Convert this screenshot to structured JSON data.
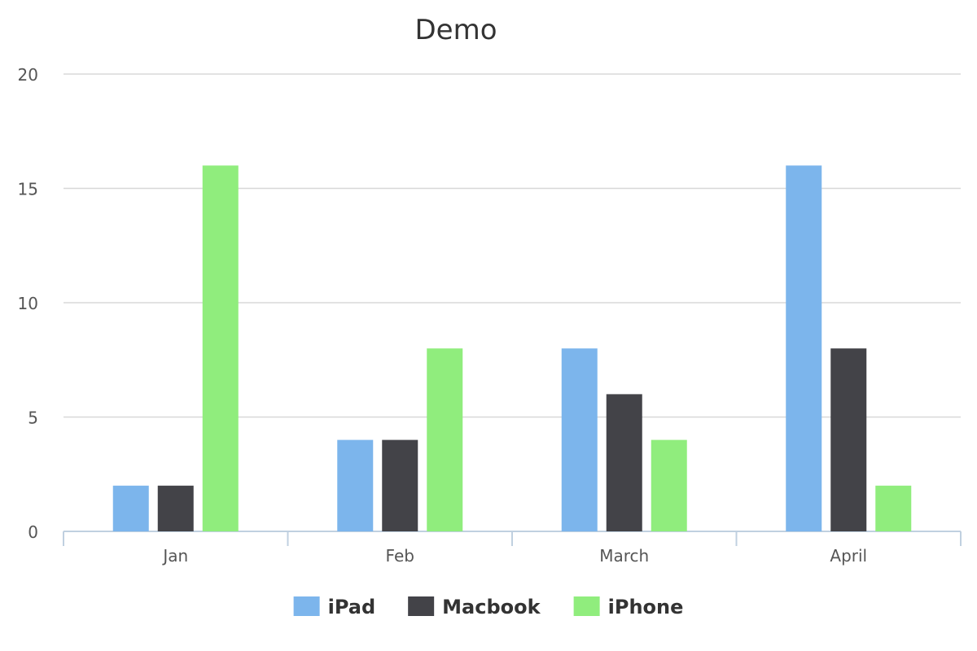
{
  "chart_data": {
    "type": "bar",
    "title": "Demo",
    "xlabel": "",
    "ylabel": "",
    "categories": [
      "Jan",
      "Feb",
      "March",
      "April"
    ],
    "series": [
      {
        "name": "iPad",
        "values": [
          2,
          4,
          8,
          16
        ],
        "color": "#7cb5ec"
      },
      {
        "name": "Macbook",
        "values": [
          2,
          4,
          6,
          8
        ],
        "color": "#434348"
      },
      {
        "name": "iPhone",
        "values": [
          16,
          8,
          4,
          2
        ],
        "color": "#90ed7d"
      }
    ],
    "ylim": [
      0,
      20
    ],
    "yticks": [
      0,
      5,
      10,
      15,
      20
    ],
    "grid": true,
    "legend_position": "bottom-center"
  }
}
